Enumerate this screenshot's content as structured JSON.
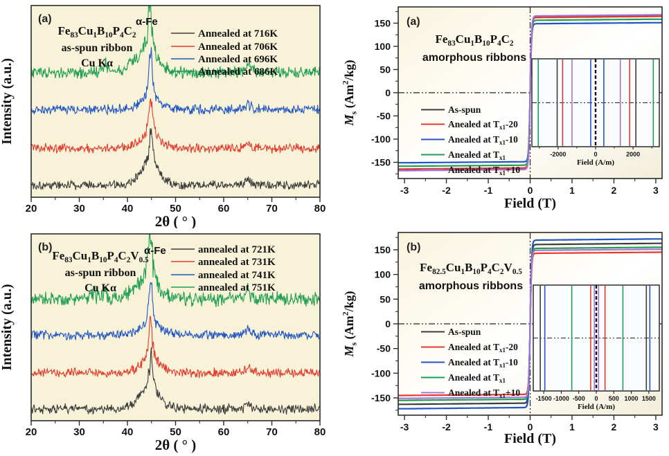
{
  "page": {
    "bg": "#ffffff"
  },
  "colors": {
    "black": "#3c3c3c",
    "red": "#e23b2e",
    "blue": "#2155c4",
    "green": "#1f9e52",
    "purple": "#a873d8",
    "xrd_bg": "#f7f2d8",
    "mh_bg1": "#faf4de",
    "mh_bg2": "#ffffff",
    "mh_bg3": "#f3eed9",
    "frame": "#2b2b2b",
    "inset_bg": "#fbfcfd"
  },
  "chart_data": [
    {
      "id": "xrd_a",
      "type": "line",
      "kind": "xrd",
      "panel_label": "(a)",
      "formula": [
        {
          "t": "Fe"
        },
        {
          "t": "83",
          "sub": true
        },
        {
          "t": "Cu"
        },
        {
          "t": "1",
          "sub": true
        },
        {
          "t": "B"
        },
        {
          "t": "10",
          "sub": true
        },
        {
          "t": "P"
        },
        {
          "t": "4",
          "sub": true
        },
        {
          "t": "C"
        },
        {
          "t": "2",
          "sub": true
        }
      ],
      "subtitle1": "as-spun ribbon",
      "subtitle2": "Cu Kα",
      "peak_label": "α-Fe",
      "xlabel": "2θ ( ° )",
      "ylabel": "Intensity (a.u.)",
      "xlim": [
        20,
        80
      ],
      "xticks": [
        20,
        30,
        40,
        50,
        60,
        70,
        80
      ],
      "series": [
        {
          "name": "Annealed at 716K",
          "color": "#3c3c3c",
          "offset": 0.05,
          "noise": 0.03,
          "seed": 101,
          "peaks": [
            {
              "c": 44.6,
              "h": 0.1,
              "w": 3.0,
              "g": true
            },
            {
              "c": 44.9,
              "h": 0.2,
              "w": 0.45
            },
            {
              "c": 65.0,
              "h": 0.025,
              "w": 0.6
            }
          ]
        },
        {
          "name": "Annealed at 706K",
          "color": "#e23b2e",
          "offset": 0.25,
          "noise": 0.03,
          "seed": 102,
          "peaks": [
            {
              "c": 44.8,
              "h": 0.06,
              "w": 3.0,
              "g": true
            },
            {
              "c": 44.8,
              "h": 0.26,
              "w": 0.42
            },
            {
              "c": 65.2,
              "h": 0.035,
              "w": 0.5
            }
          ]
        },
        {
          "name": "Annealed at 696K",
          "color": "#2155c4",
          "offset": 0.46,
          "noise": 0.03,
          "seed": 103,
          "peaks": [
            {
              "c": 44.8,
              "h": 0.05,
              "w": 3.0,
              "g": true
            },
            {
              "c": 44.8,
              "h": 0.24,
              "w": 0.45
            },
            {
              "c": 65.0,
              "h": 0.035,
              "w": 0.5
            }
          ]
        },
        {
          "name": "Annealed at 686K",
          "color": "#1f9e52",
          "offset": 0.66,
          "noise": 0.038,
          "seed": 104,
          "peaks": [
            {
              "c": 43.5,
              "h": 0.09,
              "w": 3.5,
              "g": true
            },
            {
              "c": 44.7,
              "h": 0.3,
              "w": 0.5
            },
            {
              "c": 35.4,
              "h": 0.05,
              "w": 0.4
            },
            {
              "c": 65.1,
              "h": 0.06,
              "w": 0.45
            }
          ]
        }
      ]
    },
    {
      "id": "xrd_b",
      "type": "line",
      "kind": "xrd",
      "panel_label": "(b)",
      "formula": [
        {
          "t": "Fe"
        },
        {
          "t": "83",
          "sub": true
        },
        {
          "t": "Cu"
        },
        {
          "t": "1",
          "sub": true
        },
        {
          "t": "B"
        },
        {
          "t": "10",
          "sub": true
        },
        {
          "t": "P"
        },
        {
          "t": "4",
          "sub": true
        },
        {
          "t": "C"
        },
        {
          "t": "2",
          "sub": true
        },
        {
          "t": "V"
        },
        {
          "t": "0.5",
          "sub": true
        }
      ],
      "subtitle1": "as-spun ribbon",
      "subtitle2": "Cu Kα",
      "peak_label": "α-Fe",
      "xlabel": "2θ ( ° )",
      "ylabel": "Intensity (a.u.)",
      "xlim": [
        20,
        80
      ],
      "xticks": [
        20,
        30,
        40,
        50,
        60,
        70,
        80
      ],
      "series": [
        {
          "name": "annealed at 721K",
          "color": "#3c3c3c",
          "offset": 0.05,
          "noise": 0.032,
          "seed": 201,
          "peaks": [
            {
              "c": 44.6,
              "h": 0.1,
              "w": 3.0,
              "g": true
            },
            {
              "c": 44.9,
              "h": 0.2,
              "w": 0.45
            },
            {
              "c": 65.0,
              "h": 0.03,
              "w": 0.6
            }
          ]
        },
        {
          "name": "annealed at 731K",
          "color": "#e23b2e",
          "offset": 0.25,
          "noise": 0.03,
          "seed": 202,
          "peaks": [
            {
              "c": 44.8,
              "h": 0.06,
              "w": 3.0,
              "g": true
            },
            {
              "c": 44.8,
              "h": 0.25,
              "w": 0.42
            },
            {
              "c": 65.2,
              "h": 0.035,
              "w": 0.5
            }
          ]
        },
        {
          "name": "annealed at 741K",
          "color": "#2155c4",
          "offset": 0.46,
          "noise": 0.03,
          "seed": 203,
          "peaks": [
            {
              "c": 44.8,
              "h": 0.05,
              "w": 3.0,
              "g": true
            },
            {
              "c": 44.8,
              "h": 0.24,
              "w": 0.45
            },
            {
              "c": 65.0,
              "h": 0.035,
              "w": 0.5
            }
          ]
        },
        {
          "name": "annealed at 751K",
          "color": "#1f9e52",
          "offset": 0.66,
          "noise": 0.048,
          "seed": 204,
          "peaks": [
            {
              "c": 43.8,
              "h": 0.09,
              "w": 3.5,
              "g": true
            },
            {
              "c": 44.7,
              "h": 0.3,
              "w": 0.5
            },
            {
              "c": 33.1,
              "h": 0.05,
              "w": 0.35
            },
            {
              "c": 35.4,
              "h": 0.04,
              "w": 0.35
            },
            {
              "c": 65.1,
              "h": 0.05,
              "w": 0.45
            }
          ]
        }
      ]
    },
    {
      "id": "mh_a",
      "type": "line",
      "kind": "mh",
      "panel_label": "(a)",
      "formula": [
        {
          "t": "Fe"
        },
        {
          "t": "83",
          "sub": true
        },
        {
          "t": "Cu"
        },
        {
          "t": "1",
          "sub": true
        },
        {
          "t": "B"
        },
        {
          "t": "10",
          "sub": true
        },
        {
          "t": "P"
        },
        {
          "t": "4",
          "sub": true
        },
        {
          "t": "C"
        },
        {
          "t": "2",
          "sub": true
        }
      ],
      "subtitle": "amorphous ribbons",
      "xlabel": "Field (T)",
      "ylabel_segments": [
        {
          "t": "M",
          "i": true
        },
        {
          "t": "s",
          "sub": true
        },
        {
          "t": " (Am"
        },
        {
          "t": "2",
          "sup": true
        },
        {
          "t": "/kg)"
        }
      ],
      "xlim": [
        -3.15,
        3.15
      ],
      "xticks": [
        -3,
        -2,
        -1,
        0,
        1,
        2,
        3
      ],
      "ylim": [
        -185,
        185
      ],
      "yticks": [
        150,
        100,
        50,
        0,
        -50,
        -100,
        -150
      ],
      "series": [
        {
          "label": [
            {
              "t": "As-spun"
            }
          ],
          "color": "#3c3c3c",
          "ms": 166,
          "inset_lines": [
            -2050,
            2150
          ]
        },
        {
          "label": [
            {
              "t": "Anealed at T"
            },
            {
              "t": "x1",
              "sub": true
            },
            {
              "t": "-20"
            }
          ],
          "color": "#e23b2e",
          "ms": 164.5,
          "inset_lines": [
            -1760,
            1820
          ]
        },
        {
          "label": [
            {
              "t": "Anealed at T"
            },
            {
              "t": "x1",
              "sub": true
            },
            {
              "t": "-10"
            }
          ],
          "color": "#2155c4",
          "ms": 151,
          "inset_lines": [
            -260,
            440
          ]
        },
        {
          "label": [
            {
              "t": "Anealed at T"
            },
            {
              "t": "x1",
              "sub": true
            }
          ],
          "color": "#1f9e52",
          "ms": 158.5,
          "inset_lines": [
            -3060,
            3080
          ]
        },
        {
          "label": [
            {
              "t": "Anealed at T"
            },
            {
              "t": "x1",
              "sub": true
            },
            {
              "t": "+10"
            }
          ],
          "color": "#a873d8",
          "ms": 168,
          "inset_lines": [
            -1260,
            1320
          ]
        }
      ],
      "inset": {
        "xlim": [
          -3400,
          3400
        ],
        "xticks": [
          -2000,
          0,
          2000
        ],
        "minors": [
          -3000,
          -1000,
          1000,
          3000
        ],
        "xlabel": "Field (A/m)"
      }
    },
    {
      "id": "mh_b",
      "type": "line",
      "kind": "mh",
      "panel_label": "(b)",
      "formula": [
        {
          "t": "Fe"
        },
        {
          "t": "82.5",
          "sub": true
        },
        {
          "t": "Cu"
        },
        {
          "t": "1",
          "sub": true
        },
        {
          "t": "B"
        },
        {
          "t": "10",
          "sub": true
        },
        {
          "t": "P"
        },
        {
          "t": "4",
          "sub": true
        },
        {
          "t": "C"
        },
        {
          "t": "2",
          "sub": true
        },
        {
          "t": "V"
        },
        {
          "t": "0.5",
          "sub": true
        }
      ],
      "subtitle": "amorphous ribbons",
      "xlabel": "Field (T)",
      "ylabel_segments": [
        {
          "t": "M",
          "i": true
        },
        {
          "t": "s",
          "sub": true
        },
        {
          "t": " (Am"
        },
        {
          "t": "2",
          "sup": true
        },
        {
          "t": "/kg)"
        }
      ],
      "xlim": [
        -3.15,
        3.15
      ],
      "xticks": [
        -3,
        -2,
        -1,
        0,
        1,
        2,
        3
      ],
      "ylim": [
        -185,
        185
      ],
      "yticks": [
        150,
        100,
        50,
        0,
        -50,
        -100,
        -150
      ],
      "series": [
        {
          "label": [
            {
              "t": "As-spun"
            }
          ],
          "color": "#3c3c3c",
          "ms": 163,
          "inset_lines": [
            -1600,
            1430
          ]
        },
        {
          "label": [
            {
              "t": "Anealed at T"
            },
            {
              "t": "x1",
              "sub": true
            },
            {
              "t": "-20"
            }
          ],
          "color": "#e23b2e",
          "ms": 145,
          "inset_lines": [
            -160,
            250
          ]
        },
        {
          "label": [
            {
              "t": "Anealed at T"
            },
            {
              "t": "x1",
              "sub": true
            },
            {
              "t": "-10"
            }
          ],
          "color": "#2155c4",
          "ms": 172,
          "inset_lines": [
            -1470,
            1530
          ]
        },
        {
          "label": [
            {
              "t": "Anealed at T"
            },
            {
              "t": "x1",
              "sub": true
            }
          ],
          "color": "#1f9e52",
          "ms": 155,
          "inset_lines": [
            -700,
            760
          ]
        },
        {
          "label": [
            {
              "t": "Anealed at T"
            },
            {
              "t": "x1",
              "sub": true
            },
            {
              "t": "+10"
            }
          ],
          "color": "#a873d8",
          "ms": 151,
          "inset_lines": [
            -55,
            65
          ]
        }
      ],
      "inset": {
        "xlim": [
          -1800,
          1800
        ],
        "xticks": [
          -1500,
          -1000,
          -500,
          0,
          500,
          1000,
          1500
        ],
        "minors": [],
        "xlabel": "Field (A/m)"
      }
    }
  ]
}
